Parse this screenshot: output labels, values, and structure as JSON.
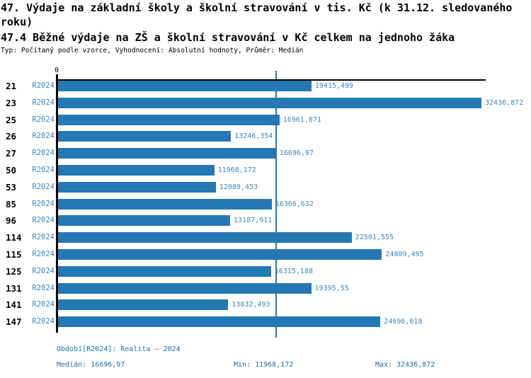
{
  "header": {
    "title": "47. Výdaje na základní školy a školní stravování v tis. Kč (k 31.12. sledovaného\nroku)",
    "subtitle": "47.4 Běžné výdaje na ZŠ a školní stravování v Kč celkem na jednoho žáka",
    "meta": "Typ: Počítaný podle vzorce, Vyhodnocení: Absolutní hodnoty, Průměr: Medián"
  },
  "colors": {
    "bar": "#2478b4",
    "median_line": "#2878b4",
    "label_blue": "#3c86bb",
    "footer_blue": "#1d6fa5"
  },
  "chart_data": {
    "type": "bar",
    "orientation": "horizontal",
    "grid": false,
    "legend": false,
    "zero_tick_label": "0",
    "xlim": [
      0,
      32436.872
    ],
    "median_value": 16696.97,
    "period_label": "R2024",
    "categories": [
      "21",
      "23",
      "25",
      "26",
      "27",
      "50",
      "53",
      "85",
      "96",
      "114",
      "115",
      "125",
      "131",
      "141",
      "147"
    ],
    "values": [
      19415.499,
      32436.872,
      16961.871,
      13246.354,
      16696.97,
      11968.172,
      12089.453,
      16366.632,
      13187.911,
      22501.555,
      24809.495,
      16315.188,
      19395.55,
      13032.493,
      24696.018
    ],
    "value_labels": [
      "19415,499",
      "32436,872",
      "16961,871",
      "13246,354",
      "16696,97",
      "11968,172",
      "12089,453",
      "16366,632",
      "13187,911",
      "22501,555",
      "24809,495",
      "16315,188",
      "19395,55",
      "13032,493",
      "24696,018"
    ]
  },
  "footer": {
    "period": "Období[R2024]: Realita – 2024",
    "median": "Medián: 16696,97",
    "min": "Min: 11968,172",
    "max": "Max: 32436,872"
  }
}
